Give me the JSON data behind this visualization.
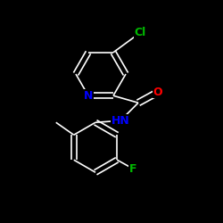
{
  "background_color": "#000000",
  "bond_color": "#ffffff",
  "atom_colors": {
    "N": "#0000ff",
    "O": "#ff0000",
    "F": "#00bb00",
    "Cl": "#00bb00",
    "C": "#ffffff"
  },
  "font_size": 9,
  "line_width": 1.2,
  "xlim": [
    0,
    250
  ],
  "ylim": [
    0,
    250
  ]
}
